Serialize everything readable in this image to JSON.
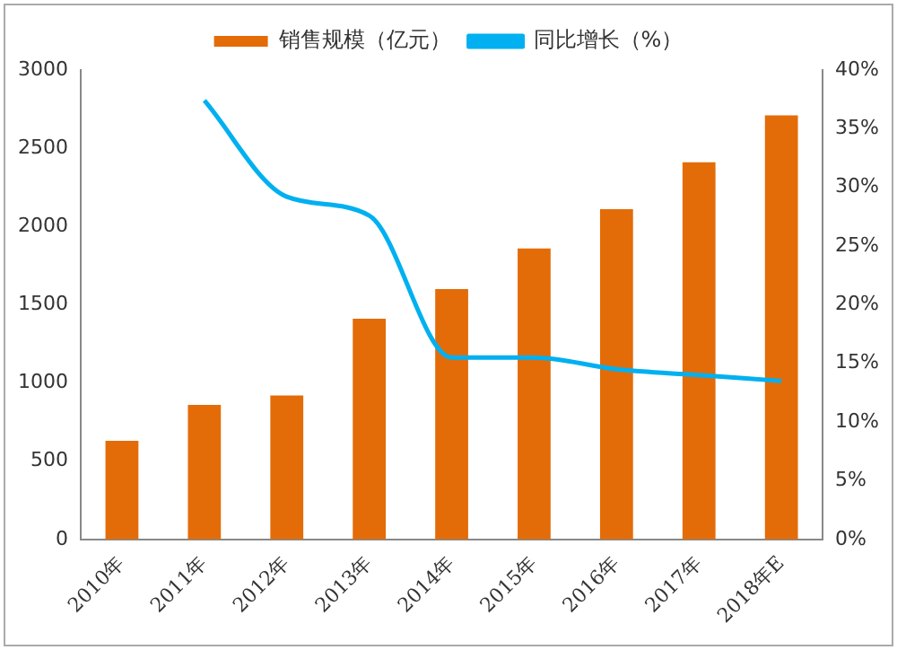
{
  "chart_data": {
    "type": "bar",
    "categories": [
      "2010年",
      "2011年",
      "2012年",
      "2013年",
      "2014年",
      "2015年",
      "2016年",
      "2017年",
      "2018年E"
    ],
    "series": [
      {
        "name": "销售规模（亿元）",
        "color": "#e36c09",
        "values": [
          630,
          860,
          920,
          1410,
          1600,
          1860,
          2110,
          2410,
          2710
        ]
      },
      {
        "name": "同比增长（%）",
        "type": "line",
        "axis": "y2",
        "color": "#00b0f0",
        "marker": "none",
        "values": [
          null,
          37.4,
          29.2,
          27.6,
          15.5,
          15.5,
          14.5,
          14.0,
          13.5
        ]
      }
    ],
    "ylim": [
      0,
      3000
    ],
    "yticks": [
      0,
      500,
      1000,
      1500,
      2000,
      2500,
      3000
    ],
    "y2lim": [
      0,
      40
    ],
    "y2ticks": [
      {
        "value": 0,
        "label": "0%"
      },
      {
        "value": 5,
        "label": "5%"
      },
      {
        "value": 10,
        "label": "10%"
      },
      {
        "value": 15,
        "label": "15%"
      },
      {
        "value": 20,
        "label": "20%"
      },
      {
        "value": 25,
        "label": "25%"
      },
      {
        "value": 30,
        "label": "30%"
      },
      {
        "value": 35,
        "label": "35%"
      },
      {
        "value": 40,
        "label": "40%"
      }
    ],
    "grid": false,
    "legend": "top"
  }
}
